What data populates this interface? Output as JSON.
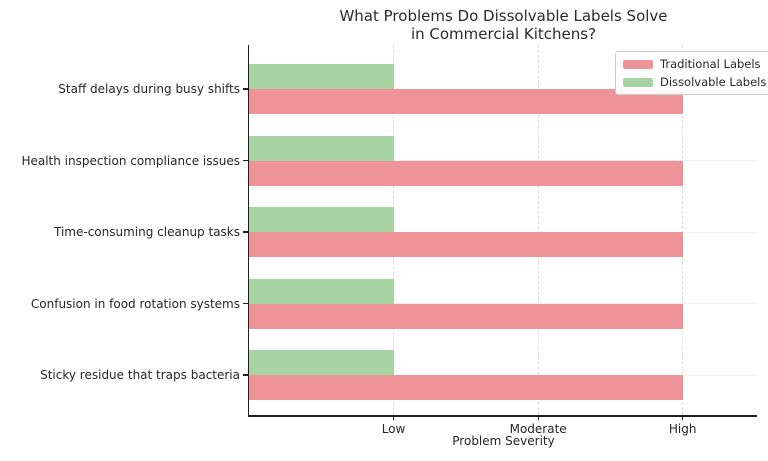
{
  "title": {
    "line1": "What Problems Do Dissolvable Labels Solve",
    "line2": "in Commercial Kitchens?"
  },
  "chart_data": {
    "type": "bar",
    "orientation": "horizontal",
    "title": "What Problems Do Dissolvable Labels Solve in Commercial Kitchens?",
    "categories": [
      "Staff delays during busy shifts",
      "Health inspection compliance issues",
      "Time-consuming cleanup tasks",
      "Confusion in food rotation systems",
      "Sticky residue that traps bacteria"
    ],
    "series": [
      {
        "name": "Traditional Labels",
        "color": "#ee9398",
        "values": [
          3,
          3,
          3,
          3,
          3
        ]
      },
      {
        "name": "Dissolvable Labels",
        "color": "#a8d3a2",
        "values": [
          1,
          1,
          1,
          1,
          1
        ]
      }
    ],
    "xlabel": "Problem Severity",
    "ylabel": "",
    "x_ticks": [
      {
        "value": 1,
        "label": "Low"
      },
      {
        "value": 2,
        "label": "Moderate"
      },
      {
        "value": 3,
        "label": "High"
      }
    ],
    "xlim": [
      0,
      3.5
    ],
    "grid": true,
    "legend_position": "upper right"
  },
  "colors": {
    "background": "#ffffff",
    "spine": "#1f1f1f",
    "text": "#262626",
    "grid_vertical": "#dcdcdc",
    "grid_horizontal": "#e2e2e2",
    "legend_border": "#cccccc"
  }
}
